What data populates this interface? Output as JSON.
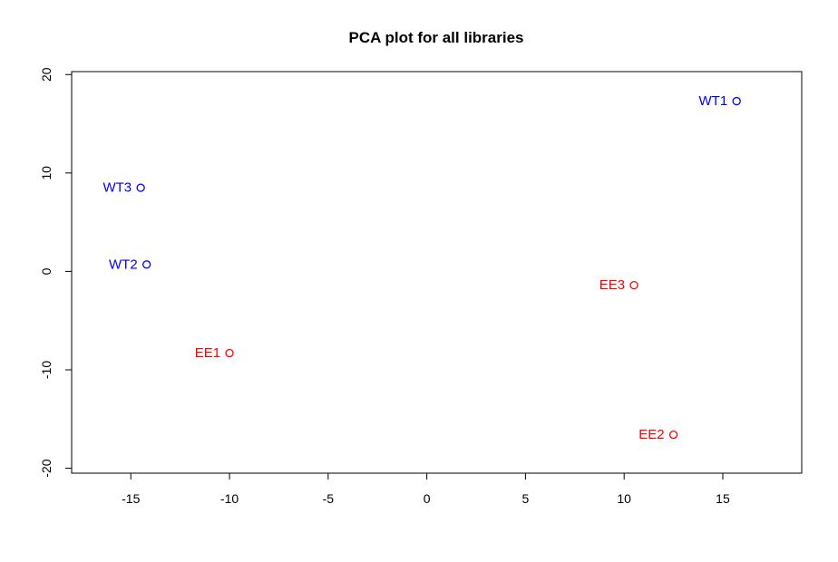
{
  "chart_data": {
    "type": "scatter",
    "title": "PCA plot for all libraries",
    "xlabel": "",
    "ylabel": "",
    "xlim": [
      -18,
      19
    ],
    "ylim": [
      -20.5,
      20.3
    ],
    "xticks": [
      -15,
      -10,
      -5,
      0,
      5,
      10,
      15
    ],
    "yticks": [
      -20,
      -10,
      0,
      10,
      20
    ],
    "grid": false,
    "legend": "none",
    "points": [
      {
        "label": "WT1",
        "x": 15.7,
        "y": 17.3,
        "color": "#0000ff"
      },
      {
        "label": "WT3",
        "x": -14.5,
        "y": 8.5,
        "color": "#0000ff"
      },
      {
        "label": "WT2",
        "x": -14.2,
        "y": 0.7,
        "color": "#0000ff"
      },
      {
        "label": "EE3",
        "x": 10.5,
        "y": -1.4,
        "color": "#ff0000"
      },
      {
        "label": "EE1",
        "x": -10.0,
        "y": -8.3,
        "color": "#ff0000"
      },
      {
        "label": "EE2",
        "x": 12.5,
        "y": -16.6,
        "color": "#ff0000"
      }
    ]
  }
}
